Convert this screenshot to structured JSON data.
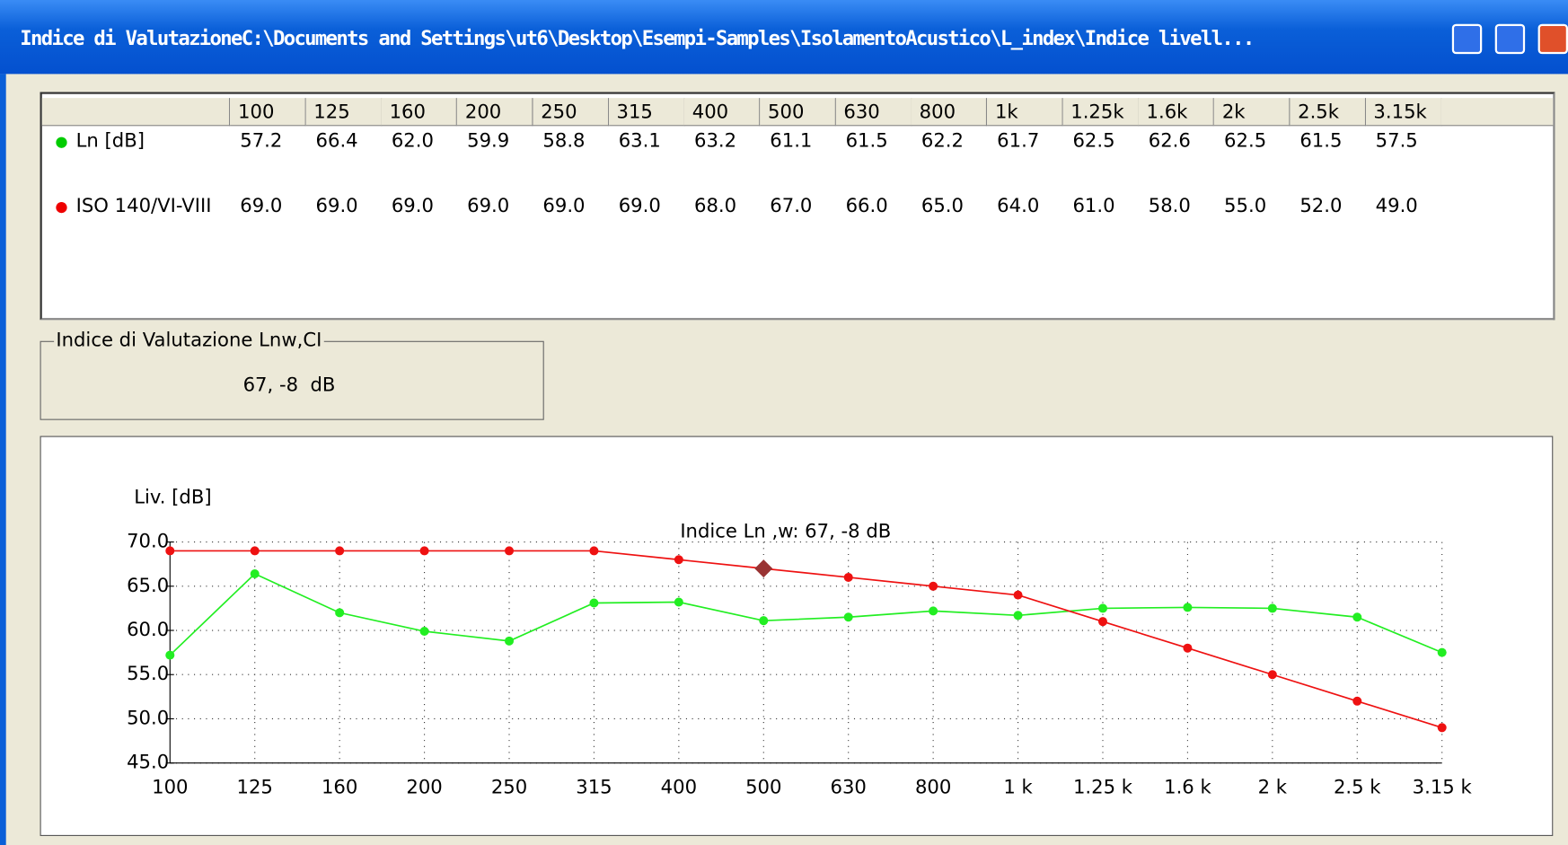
{
  "window": {
    "title": "Indice di ValutazioneC:\\Documents and Settings\\ut6\\Desktop\\Esempi-Samples\\IsolamentoAcustico\\L_index\\Indice livell..."
  },
  "table": {
    "columns": [
      "100",
      "125",
      "160",
      "200",
      "250",
      "315",
      "400",
      "500",
      "630",
      "800",
      "1k",
      "1.25k",
      "1.6k",
      "2k",
      "2.5k",
      "3.15k"
    ],
    "rows": [
      {
        "label": "Ln [dB]",
        "color": "#00cc00",
        "values": [
          "57.2",
          "66.4",
          "62.0",
          "59.9",
          "58.8",
          "63.1",
          "63.2",
          "61.1",
          "61.5",
          "62.2",
          "61.7",
          "62.5",
          "62.6",
          "62.5",
          "61.5",
          "57.5"
        ]
      },
      {
        "label": "ISO 140/VI-VIII",
        "color": "#ee0000",
        "values": [
          "69.0",
          "69.0",
          "69.0",
          "69.0",
          "69.0",
          "69.0",
          "68.0",
          "67.0",
          "66.0",
          "65.0",
          "64.0",
          "61.0",
          "58.0",
          "55.0",
          "52.0",
          "49.0"
        ]
      }
    ]
  },
  "group_box": {
    "title": "Indice di Valutazione Lnw,CI",
    "value": "67, -8  dB"
  },
  "chart_data": {
    "type": "line",
    "y_label": "Liv. [dB]",
    "annotation": "Indice Ln ,w: 67, -8  dB",
    "categories": [
      "100",
      "125",
      "160",
      "200",
      "250",
      "315",
      "400",
      "500",
      "630",
      "800",
      "1 k",
      "1.25 k",
      "1.6 k",
      "2 k",
      "2.5 k",
      "3.15 k"
    ],
    "series": [
      {
        "color": "#22ee22",
        "values": [
          57.2,
          66.4,
          62.0,
          59.9,
          58.8,
          63.1,
          63.2,
          61.1,
          61.5,
          62.2,
          61.7,
          62.5,
          62.6,
          62.5,
          61.5,
          57.5
        ]
      },
      {
        "color": "#ee1111",
        "values": [
          69,
          69,
          69,
          69,
          69,
          69,
          68,
          67,
          66,
          65,
          64,
          61,
          58,
          55,
          52,
          49
        ]
      }
    ],
    "reference_point": {
      "category": "500",
      "value": 67,
      "color": "#993333"
    },
    "ylim": [
      45,
      70
    ],
    "yticks": [
      {
        "value": 45,
        "label": "45.0"
      },
      {
        "value": 50,
        "label": "50.0"
      },
      {
        "value": 55,
        "label": "55.0"
      },
      {
        "value": 60,
        "label": "60.0"
      },
      {
        "value": 65,
        "label": "65.0"
      },
      {
        "value": 70,
        "label": "70.0"
      }
    ],
    "grid": true
  }
}
